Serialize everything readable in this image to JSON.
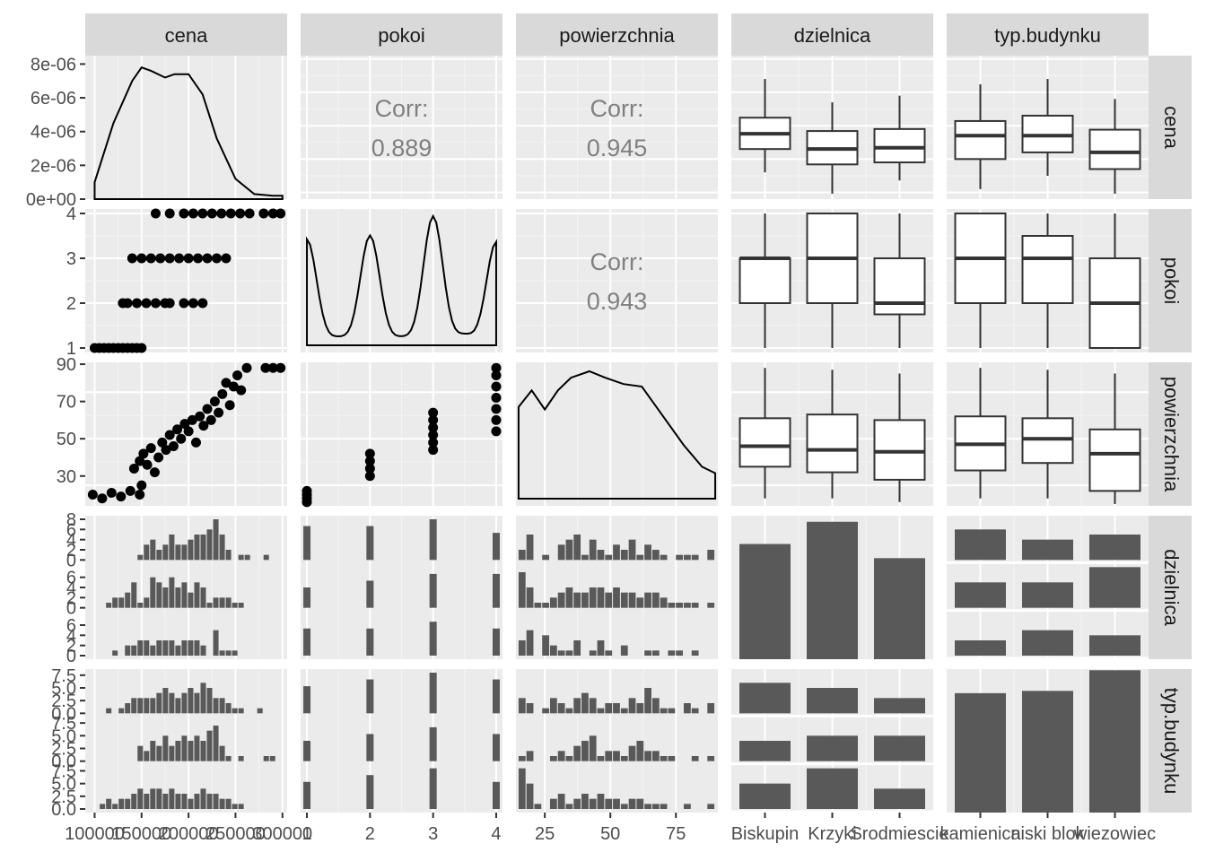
{
  "chart_data": {
    "type": "scatterplot-matrix",
    "variables": [
      "cena",
      "pokoi",
      "powierzchnia",
      "dzielnica",
      "typ.budynku"
    ],
    "strip_labels": {
      "top": [
        "cena",
        "pokoi",
        "powierzchnia",
        "dzielnica",
        "typ.budynku"
      ],
      "right": [
        "cena",
        "pokoi",
        "powierzchnia",
        "dzielnica",
        "typ.budynku"
      ]
    },
    "bottom_ticks": {
      "cena": [
        "100000",
        "150000",
        "200000",
        "250000",
        "300000"
      ],
      "pokoi": [
        "1",
        "2",
        "3",
        "4"
      ],
      "powierzchnia": [
        "25",
        "50",
        "75"
      ],
      "dzielnica": [
        "Biskupin",
        "Krzyki",
        "Srodmiescie"
      ],
      "typ.budynku": [
        "kamienica",
        "niski blok",
        "wiezowiec"
      ]
    },
    "left_ticks": {
      "cena": [
        "0e+00",
        "2e-06",
        "4e-06",
        "6e-06",
        "8e-06"
      ],
      "pokoi": [
        "1",
        "2",
        "3",
        "4"
      ],
      "powierzchnia": [
        "30",
        "50",
        "70",
        "90"
      ],
      "dzielnica": [
        "0",
        "2",
        "4",
        "6",
        "8",
        "0",
        "2",
        "4",
        "6",
        "0",
        "2",
        "4",
        "6"
      ],
      "typ.budynku": [
        "0.0",
        "2.5",
        "5.0",
        "7.5",
        "0.0",
        "2.5",
        "5.0",
        "7.5",
        "0.0",
        "2.5",
        "5.0",
        "7.5"
      ]
    },
    "correlations": [
      {
        "row": "pokoi",
        "col": "cena",
        "label": "Corr:",
        "value": "0.889"
      },
      {
        "row": "powierzchnia",
        "col": "cena",
        "label": "Corr:",
        "value": "0.945"
      },
      {
        "row": "powierzchnia",
        "col": "pokoi",
        "label": "Corr:",
        "value": "0.943"
      }
    ],
    "density_cena": {
      "x": [
        100000,
        120000,
        140000,
        150000,
        160000,
        175000,
        185000,
        200000,
        215000,
        230000,
        250000,
        270000,
        290000,
        300000
      ],
      "y": [
        1e-06,
        4.5e-06,
        7e-06,
        7.8e-06,
        7.6e-06,
        7.2e-06,
        7.4e-06,
        7.4e-06,
        6.2e-06,
        3.6e-06,
        1.2e-06,
        3e-07,
        2e-07,
        2e-07
      ]
    },
    "density_pokoi": {
      "x": [
        1,
        1.5,
        2,
        2.5,
        3,
        3.5,
        4
      ],
      "y_shape": [
        0.82,
        0.06,
        0.85,
        0.06,
        1.0,
        0.08,
        0.8
      ]
    },
    "density_powierzchnia": {
      "x": [
        15,
        20,
        25,
        30,
        35,
        42,
        48,
        55,
        62,
        70,
        78,
        85,
        90
      ],
      "y_shape": [
        0.72,
        0.85,
        0.7,
        0.85,
        0.95,
        1.0,
        0.95,
        0.9,
        0.88,
        0.65,
        0.42,
        0.25,
        0.2
      ]
    },
    "scatter_pokoi_cena": [
      [
        100000,
        1
      ],
      [
        105000,
        1
      ],
      [
        110000,
        1
      ],
      [
        115000,
        1
      ],
      [
        120000,
        1
      ],
      [
        125000,
        1
      ],
      [
        130000,
        1
      ],
      [
        135000,
        1
      ],
      [
        140000,
        1
      ],
      [
        145000,
        1
      ],
      [
        150000,
        1
      ],
      [
        130000,
        2
      ],
      [
        135000,
        2
      ],
      [
        145000,
        2
      ],
      [
        155000,
        2
      ],
      [
        165000,
        2
      ],
      [
        175000,
        2
      ],
      [
        180000,
        2
      ],
      [
        195000,
        2
      ],
      [
        205000,
        2
      ],
      [
        215000,
        2
      ],
      [
        140000,
        3
      ],
      [
        150000,
        3
      ],
      [
        160000,
        3
      ],
      [
        170000,
        3
      ],
      [
        180000,
        3
      ],
      [
        190000,
        3
      ],
      [
        200000,
        3
      ],
      [
        210000,
        3
      ],
      [
        220000,
        3
      ],
      [
        230000,
        3
      ],
      [
        240000,
        3
      ],
      [
        165000,
        4
      ],
      [
        180000,
        4
      ],
      [
        195000,
        4
      ],
      [
        205000,
        4
      ],
      [
        215000,
        4
      ],
      [
        225000,
        4
      ],
      [
        235000,
        4
      ],
      [
        245000,
        4
      ],
      [
        255000,
        4
      ],
      [
        265000,
        4
      ],
      [
        280000,
        4
      ],
      [
        290000,
        4
      ],
      [
        298000,
        4
      ]
    ],
    "scatter_powierzchnia_cena": [
      [
        98000,
        20
      ],
      [
        108000,
        18
      ],
      [
        118000,
        21
      ],
      [
        128000,
        19
      ],
      [
        138000,
        22
      ],
      [
        148000,
        20
      ],
      [
        150000,
        25
      ],
      [
        142000,
        34
      ],
      [
        148000,
        38
      ],
      [
        152000,
        42
      ],
      [
        156000,
        36
      ],
      [
        160000,
        45
      ],
      [
        164000,
        32
      ],
      [
        168000,
        40
      ],
      [
        172000,
        48
      ],
      [
        176000,
        44
      ],
      [
        180000,
        52
      ],
      [
        184000,
        46
      ],
      [
        188000,
        55
      ],
      [
        192000,
        50
      ],
      [
        196000,
        58
      ],
      [
        200000,
        54
      ],
      [
        204000,
        60
      ],
      [
        208000,
        48
      ],
      [
        212000,
        62
      ],
      [
        216000,
        57
      ],
      [
        220000,
        66
      ],
      [
        224000,
        60
      ],
      [
        228000,
        70
      ],
      [
        232000,
        64
      ],
      [
        236000,
        74
      ],
      [
        240000,
        80
      ],
      [
        244000,
        68
      ],
      [
        248000,
        78
      ],
      [
        252000,
        84
      ],
      [
        256000,
        76
      ],
      [
        262000,
        88
      ],
      [
        282000,
        88
      ],
      [
        290000,
        88
      ],
      [
        298000,
        88
      ]
    ],
    "scatter_powierzchnia_pokoi": [
      [
        1,
        16
      ],
      [
        1,
        18
      ],
      [
        1,
        20
      ],
      [
        1,
        22
      ],
      [
        2,
        30
      ],
      [
        2,
        34
      ],
      [
        2,
        38
      ],
      [
        2,
        42
      ],
      [
        3,
        44
      ],
      [
        3,
        48
      ],
      [
        3,
        52
      ],
      [
        3,
        56
      ],
      [
        3,
        60
      ],
      [
        3,
        64
      ],
      [
        4,
        54
      ],
      [
        4,
        60
      ],
      [
        4,
        66
      ],
      [
        4,
        72
      ],
      [
        4,
        78
      ],
      [
        4,
        84
      ],
      [
        4,
        88
      ]
    ],
    "boxplots": {
      "cena_by_dzielnica": [
        [
          130000,
          165000,
          188000,
          212000,
          270000
        ],
        [
          98000,
          142000,
          165000,
          192000,
          235000
        ],
        [
          118000,
          145000,
          167000,
          195000,
          245000
        ]
      ],
      "cena_by_typ": [
        [
          105000,
          150000,
          185000,
          207000,
          262000
        ],
        [
          125000,
          160000,
          185000,
          215000,
          270000
        ],
        [
          98000,
          135000,
          160000,
          194000,
          240000
        ]
      ],
      "pokoi_by_dzielnica": [
        [
          1,
          2,
          3,
          3,
          4
        ],
        [
          1,
          2,
          3,
          4,
          4
        ],
        [
          1,
          1.75,
          2,
          3,
          4
        ]
      ],
      "pokoi_by_typ": [
        [
          1,
          2,
          3,
          4,
          4
        ],
        [
          1,
          2,
          3,
          3.5,
          4
        ],
        [
          1,
          1,
          2,
          3,
          4
        ]
      ],
      "powierzchnia_by_dzielnica": [
        [
          18,
          35,
          46,
          61,
          88
        ],
        [
          18,
          32,
          44,
          63,
          87
        ],
        [
          16,
          28,
          43,
          60,
          85
        ]
      ],
      "powierzchnia_by_typ": [
        [
          18,
          33,
          47,
          62,
          88
        ],
        [
          18,
          37,
          50,
          61,
          87
        ],
        [
          15,
          22,
          42,
          55,
          85
        ]
      ]
    },
    "bar_dzielnica": {
      "categories": [
        "Biskupin",
        "Krzyki",
        "Srodmiescie"
      ],
      "values": [
        57,
        68,
        50
      ]
    },
    "bar_typ": {
      "categories": [
        "kamienica",
        "niski blok",
        "wiezowiec"
      ],
      "values": [
        52,
        53,
        62
      ]
    },
    "bar_typ_by_dzielnica": {
      "rows": [
        "Biskupin",
        "Krzyki",
        "Srodmiescie"
      ],
      "categories": [
        "kamienica",
        "niski blok",
        "wiezowiec"
      ],
      "values": [
        [
          6,
          4,
          5
        ],
        [
          5,
          5,
          8
        ],
        [
          3,
          5,
          4
        ]
      ]
    },
    "bar_dzielnica_by_typ": {
      "rows": [
        "kamienica",
        "niski blok",
        "wiezowiec"
      ],
      "categories": [
        "Biskupin",
        "Krzyki",
        "Srodmiescie"
      ],
      "values": [
        [
          6,
          5,
          3
        ],
        [
          4,
          5,
          5
        ],
        [
          5,
          8,
          4
        ]
      ]
    },
    "histograms": {
      "cena_by_dzielnica": [
        [
          0,
          0,
          0,
          0,
          0,
          0,
          0,
          0,
          1,
          3,
          4,
          2,
          3,
          5,
          3,
          3,
          4,
          5,
          5,
          6,
          8,
          5,
          2,
          0,
          1,
          1,
          0,
          0,
          1,
          0,
          0
        ],
        [
          0,
          0,
          0,
          1,
          2,
          2,
          3,
          5,
          1,
          2,
          6,
          5,
          4,
          6,
          4,
          5,
          3,
          5,
          4,
          1,
          2,
          2,
          2,
          1,
          1,
          0,
          0,
          0,
          0,
          0,
          0
        ],
        [
          0,
          0,
          0,
          0,
          1,
          0,
          2,
          2,
          3,
          3,
          2,
          3,
          3,
          3,
          2,
          3,
          3,
          3,
          2,
          0,
          5,
          1,
          1,
          1,
          0,
          0,
          0,
          0,
          0,
          0,
          0
        ]
      ],
      "cena_by_typ": [
        [
          0,
          0,
          0,
          1,
          0,
          1,
          2,
          3,
          3,
          3,
          3,
          4,
          5,
          4,
          3,
          4,
          5,
          4,
          6,
          5,
          3,
          3,
          2,
          1,
          1,
          0,
          0,
          1,
          0,
          0,
          0
        ],
        [
          0,
          0,
          0,
          0,
          0,
          0,
          0,
          0,
          3,
          2,
          4,
          3,
          5,
          3,
          4,
          5,
          4,
          5,
          4,
          6,
          7,
          3,
          1,
          0,
          1,
          0,
          0,
          0,
          1,
          1,
          0
        ],
        [
          0,
          0,
          1,
          2,
          1,
          2,
          2,
          3,
          4,
          3,
          4,
          4,
          3,
          4,
          3,
          3,
          2,
          3,
          4,
          3,
          3,
          2,
          2,
          1,
          1,
          0,
          0,
          0,
          0,
          0,
          0
        ]
      ],
      "pokoi_by_dzielnica": [
        [
          5,
          5,
          6,
          4
        ],
        [
          3,
          4,
          5,
          5
        ],
        [
          4,
          4,
          5,
          4
        ]
      ],
      "pokoi_by_typ": [
        [
          4,
          5,
          6,
          5
        ],
        [
          3,
          4,
          5,
          4
        ],
        [
          4,
          5,
          6,
          4
        ]
      ],
      "powierzchnia_by_dzielnica": [
        [
          2,
          5,
          0,
          1,
          0,
          3,
          4,
          5,
          1,
          4,
          2,
          1,
          3,
          2,
          4,
          1,
          3,
          2,
          1,
          0,
          1,
          1,
          1,
          0,
          2
        ],
        [
          7,
          4,
          1,
          1,
          2,
          3,
          4,
          3,
          3,
          4,
          4,
          3,
          4,
          3,
          3,
          2,
          3,
          3,
          2,
          1,
          1,
          1,
          1,
          0,
          1
        ],
        [
          3,
          5,
          0,
          4,
          2,
          1,
          1,
          3,
          0,
          1,
          3,
          1,
          0,
          2,
          0,
          0,
          1,
          1,
          0,
          1,
          1,
          0,
          1,
          0,
          0
        ]
      ],
      "powierzchnia_by_typ": [
        [
          3,
          2,
          0,
          1,
          3,
          2,
          1,
          3,
          4,
          3,
          1,
          2,
          2,
          1,
          3,
          2,
          5,
          3,
          1,
          1,
          0,
          2,
          1,
          0,
          2
        ],
        [
          1,
          2,
          0,
          0,
          1,
          2,
          1,
          3,
          4,
          5,
          1,
          2,
          2,
          1,
          3,
          4,
          2,
          2,
          1,
          1,
          0,
          0,
          1,
          0,
          1
        ],
        [
          8,
          5,
          1,
          0,
          2,
          3,
          1,
          2,
          3,
          2,
          3,
          2,
          2,
          1,
          2,
          2,
          1,
          1,
          1,
          0,
          0,
          1,
          0,
          0,
          1
        ]
      ]
    },
    "axes": {
      "cena_range": [
        90000,
        305000
      ],
      "pokoi_range": [
        0.9,
        4.1
      ],
      "powierzchnia_range": [
        14,
        91
      ],
      "density_cena_range": [
        0,
        8.5e-06
      ]
    },
    "colors": {
      "panel_bg": "#ebebeb",
      "grid_major": "#ffffff",
      "grid_minor": "#f4f4f4",
      "strip_bg": "#d9d9d9",
      "bar_fill": "#595959",
      "point": "#000000",
      "corr_text": "#808080"
    },
    "grid": true
  }
}
